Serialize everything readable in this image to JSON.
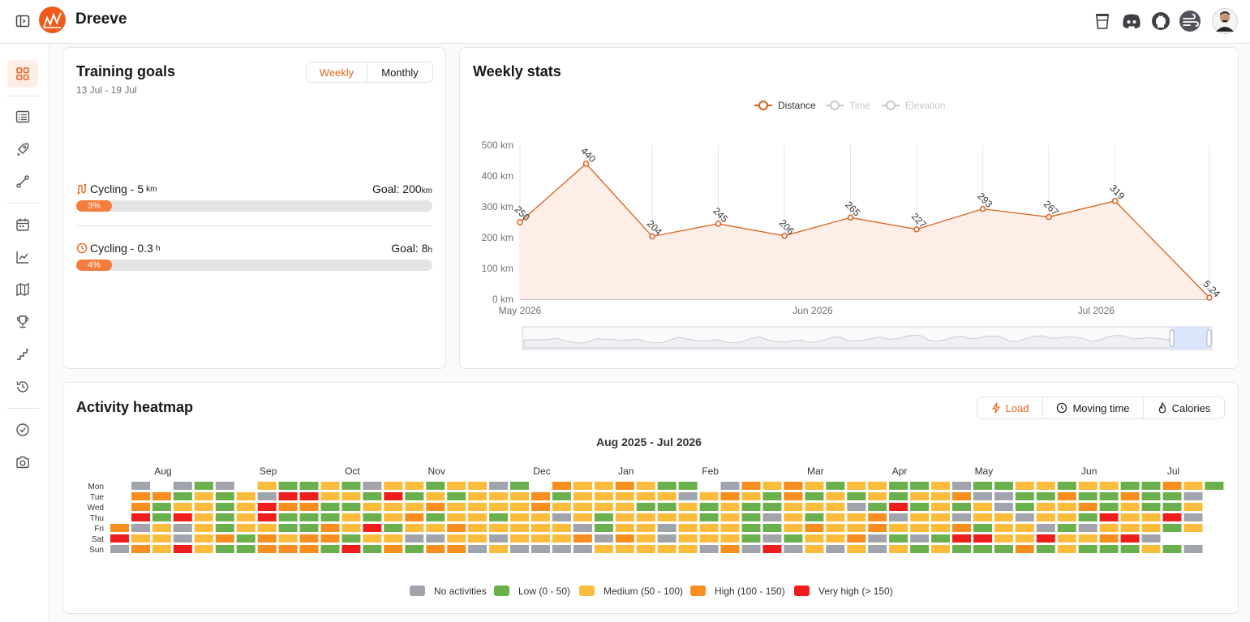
{
  "app": {
    "title": "Dreeve"
  },
  "header": {
    "toggle_icon": "sidebar-toggle-icon",
    "right_icons": [
      "coffee-cup-icon",
      "discord-icon",
      "github-icon",
      "weather-wind-icon",
      "user-avatar"
    ]
  },
  "sidebar": {
    "items": [
      "dashboard-icon",
      "activities-list-icon",
      "rocket-icon",
      "route-icon",
      "calendar-icon",
      "chart-line-icon",
      "map-icon",
      "trophy-icon",
      "stairs-icon",
      "history-icon",
      "check-circle-icon",
      "camera-icon"
    ],
    "active": "dashboard-icon"
  },
  "training_goals": {
    "title": "Training goals",
    "date_range": "13 Jul - 19 Jul",
    "toggle": {
      "weekly": "Weekly",
      "monthly": "Monthly",
      "selected": "Weekly"
    },
    "goals": [
      {
        "icon": "route-icon",
        "label": "Cycling - 5",
        "unit": "km",
        "goal_text": "Goal: 200",
        "goal_unit": "km",
        "percent_label": "3%",
        "progress": 0.03
      },
      {
        "icon": "clock-icon",
        "label": "Cycling - 0.3",
        "unit": "h",
        "goal_text": "Goal: 8",
        "goal_unit": "h",
        "percent_label": "4%",
        "progress": 0.04
      }
    ]
  },
  "weekly_stats": {
    "title": "Weekly stats",
    "legend": [
      "Distance",
      "Time",
      "Elevation"
    ],
    "active_series": "Distance",
    "colors": {
      "line": "#d95f1c",
      "fill": "#fdeee8",
      "inactive": "#c8c8cc"
    }
  },
  "chart_data": {
    "type": "area",
    "y_axis_labels": [
      "0 km",
      "100 km",
      "200 km",
      "300 km",
      "400 km",
      "500 km"
    ],
    "x_axis_labels": [
      "May 2026",
      "Jun 2026",
      "Jul 2026"
    ],
    "x": [
      "2026-05-01",
      "2026-05-08",
      "2026-05-15",
      "2026-05-22",
      "2026-05-29",
      "2026-06-05",
      "2026-06-12",
      "2026-06-19",
      "2026-06-26",
      "2026-07-03",
      "2026-07-13"
    ],
    "series": [
      {
        "name": "Distance",
        "values": [
          250,
          440,
          204,
          245,
          206,
          265,
          227,
          293,
          267,
          319,
          5.24
        ]
      }
    ],
    "data_labels": [
      "250",
      "440",
      "204",
      "245",
      "206",
      "265",
      "227",
      "293",
      "267",
      "319",
      "5.24"
    ],
    "ylim": [
      0,
      500
    ],
    "grid": true
  },
  "heatmap": {
    "title": "Activity heatmap",
    "tabs": [
      {
        "label": "Load",
        "icon": "bolt-icon"
      },
      {
        "label": "Moving time",
        "icon": "clock-icon"
      },
      {
        "label": "Calories",
        "icon": "flame-icon"
      }
    ],
    "selected_tab": "Load",
    "chart_title": "Aug 2025 - Jul 2026",
    "months": [
      "Aug",
      "Sep",
      "Oct",
      "Nov",
      "Dec",
      "Jan",
      "Feb",
      "Mar",
      "Apr",
      "May",
      "Jun",
      "Jul"
    ],
    "days": [
      "Mon",
      "Tue",
      "Wed",
      "Thu",
      "Fri",
      "Sat",
      "Sun"
    ],
    "legend": [
      {
        "label": "No activities",
        "color": "#a1a4ad"
      },
      {
        "label": "Low (0 - 50)",
        "color": "#6ab04c"
      },
      {
        "label": "Medium (50 - 100)",
        "color": "#fbbc3c"
      },
      {
        "label": "High (100 - 150)",
        "color": "#f78e1e"
      },
      {
        "label": "Very high (> 150)",
        "color": "#f01d1d"
      }
    ],
    "grid": [
      "-N1NLN MLLMLNMMLMMNL HMMHMLL NHMHMLMMLLMNLLMMLMMLLHML",
      "-HHLMLMNVVMMLVLMLMMMHLMMMMMNMHMLHLMLMLMMHNNLLHLLHLLN",
      "-HLMMLMVHHLLMMMHMMMMHMMMMLLMLMLLMMMNLVLMLMNLMMHLMLLM",
      "-VLVMLMVLLLMLMHLMMLMMNMLMMMMLMLNMLMMHNMMNMMNMMLVMMVN",
      "HNMNMLMMLLHMVLMMHMMMMMNLMMNMMMLLMHMMHMMMHLMMNLNMMMLM",
      "VMMNMHLHMHHLMMNNMMNMMMHNHMNMMMLNLMMHNLNLVVMMVMMHVN ",
      "NHMVMLLHHHLVLHLHHNMNNNNMMMMMNHNVNMNMNMLMLLLHLMLLLMLN"
    ]
  }
}
